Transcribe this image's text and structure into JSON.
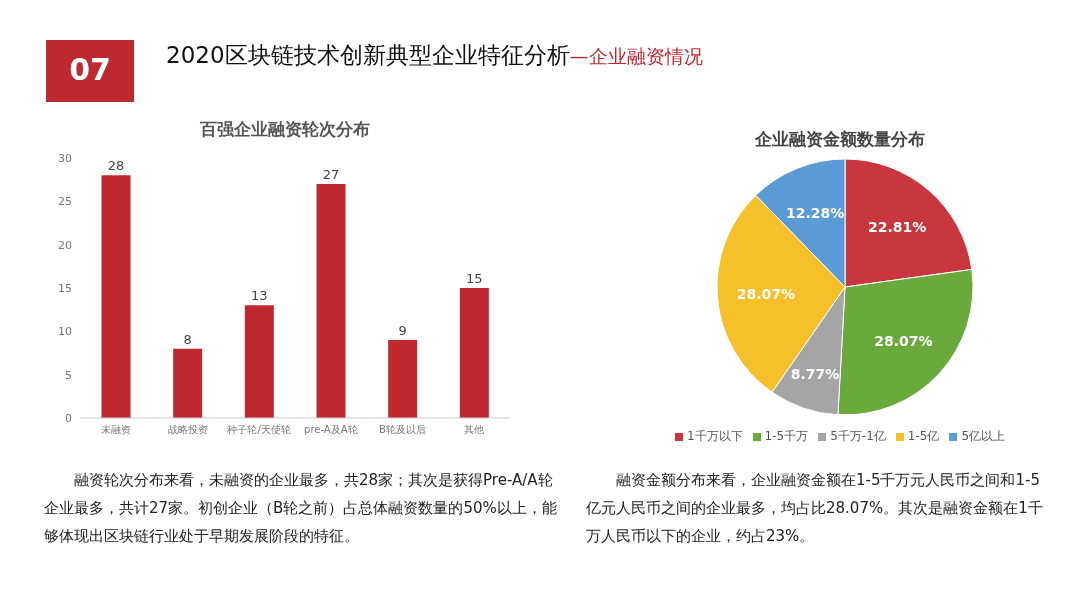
{
  "chart_data": [
    {
      "type": "bar",
      "title": "百强企业融资轮次分布",
      "categories": [
        "未融资",
        "战略投资",
        "种子轮/天使轮",
        "pre-A及A轮",
        "B轮及以后",
        "其他"
      ],
      "values": [
        28,
        8,
        13,
        27,
        9,
        15
      ],
      "color": "#c0282f",
      "ylim": [
        0,
        30
      ],
      "yticks": [
        0,
        5,
        10,
        15,
        20,
        25,
        30
      ],
      "grid": false,
      "data_labels": true,
      "annotations": [
        "07",
        "2020区块链技术创新典型企业特征分析",
        "—企业融资情况",
        "融资轮次分布来看，未融资的企业最多，共28家；其次是获得Pre-A/A轮企业最多，共计27家。初创企业（B轮之前）占总体融资数量的50%以上，能够体现出区块链行业处于早期发展阶段的特征。"
      ]
    },
    {
      "type": "pie",
      "title": "企业融资金额数量分布",
      "categories": [
        "1千万以下",
        "1-5千万",
        "5千万-1亿",
        "1-5亿",
        "5亿以上"
      ],
      "values": [
        22.81,
        28.07,
        8.77,
        28.07,
        12.28
      ],
      "colors": [
        "#c9363e",
        "#6aaa3c",
        "#a5a5a5",
        "#f5c02a",
        "#5b9bd5"
      ],
      "value_labels": [
        "22.81%",
        "28.07%",
        "8.77%",
        "28.07%",
        "12.28%"
      ],
      "legend": "bottom",
      "annotations": [
        "融资金额分布来看，企业融资金额在1-5千万元人民币之间和1-5亿元人民币之间的企业最多，均占比28.07%。其次是融资金额在1千万人民币以下的企业，约占23%。"
      ]
    }
  ]
}
